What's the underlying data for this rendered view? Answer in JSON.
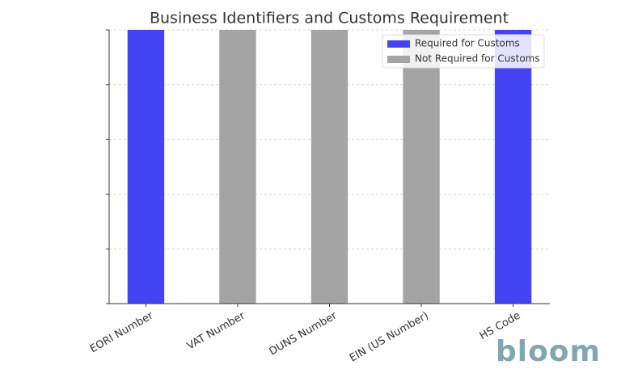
{
  "chart_data": {
    "type": "bar",
    "title": "Business Identifiers and Customs Requirement",
    "categories": [
      "EORI Number",
      "VAT Number",
      "DUNS Number",
      "EIN (US Number)",
      "HS Code"
    ],
    "series": [
      {
        "name": "Required for Customs",
        "color": "#4444f4",
        "values": [
          1,
          null,
          null,
          null,
          1
        ]
      },
      {
        "name": "Not Required for Customs",
        "color": "#a4a4a4",
        "values": [
          null,
          1,
          1,
          1,
          null
        ]
      }
    ],
    "ylim": [
      0,
      1
    ],
    "yticks": [
      0,
      0.2,
      0.4,
      0.6,
      0.8,
      1
    ],
    "grid": true,
    "legend": "upper right"
  },
  "logo": "bloom"
}
